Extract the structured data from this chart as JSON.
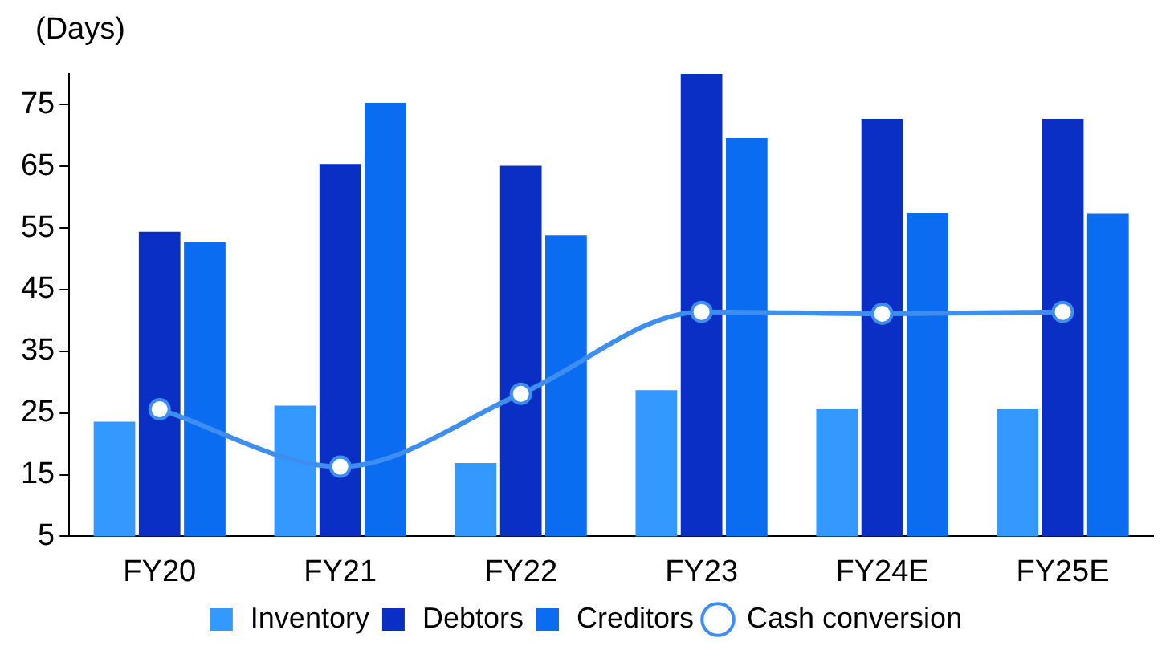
{
  "chart_data": {
    "type": "bar",
    "ylabel": "(Days)",
    "categories": [
      "FY20",
      "FY21",
      "FY22",
      "FY23",
      "FY24E",
      "FY25E"
    ],
    "series": [
      {
        "name": "Inventory",
        "color": "#3399ff",
        "values": [
          23.6,
          26.2,
          16.9,
          28.7,
          25.6,
          25.6
        ]
      },
      {
        "name": "Debtors",
        "color": "#0a2fc4",
        "values": [
          54.4,
          65.4,
          65.1,
          80,
          72.7,
          72.7
        ]
      },
      {
        "name": "Creditors",
        "color": "#0a6cf0",
        "values": [
          52.7,
          75.3,
          53.8,
          69.6,
          57.5,
          57.3
        ]
      },
      {
        "name": "Cash conversion",
        "type": "line",
        "color": "#3d8ef0",
        "marker": "circle",
        "values": [
          25.6,
          16.3,
          28.1,
          41.4,
          41.1,
          41.4
        ]
      }
    ],
    "ylim": [
      5,
      80
    ],
    "yticks": [
      5,
      15,
      25,
      35,
      45,
      55,
      65,
      75
    ],
    "grid": false,
    "legend": "bottom"
  }
}
